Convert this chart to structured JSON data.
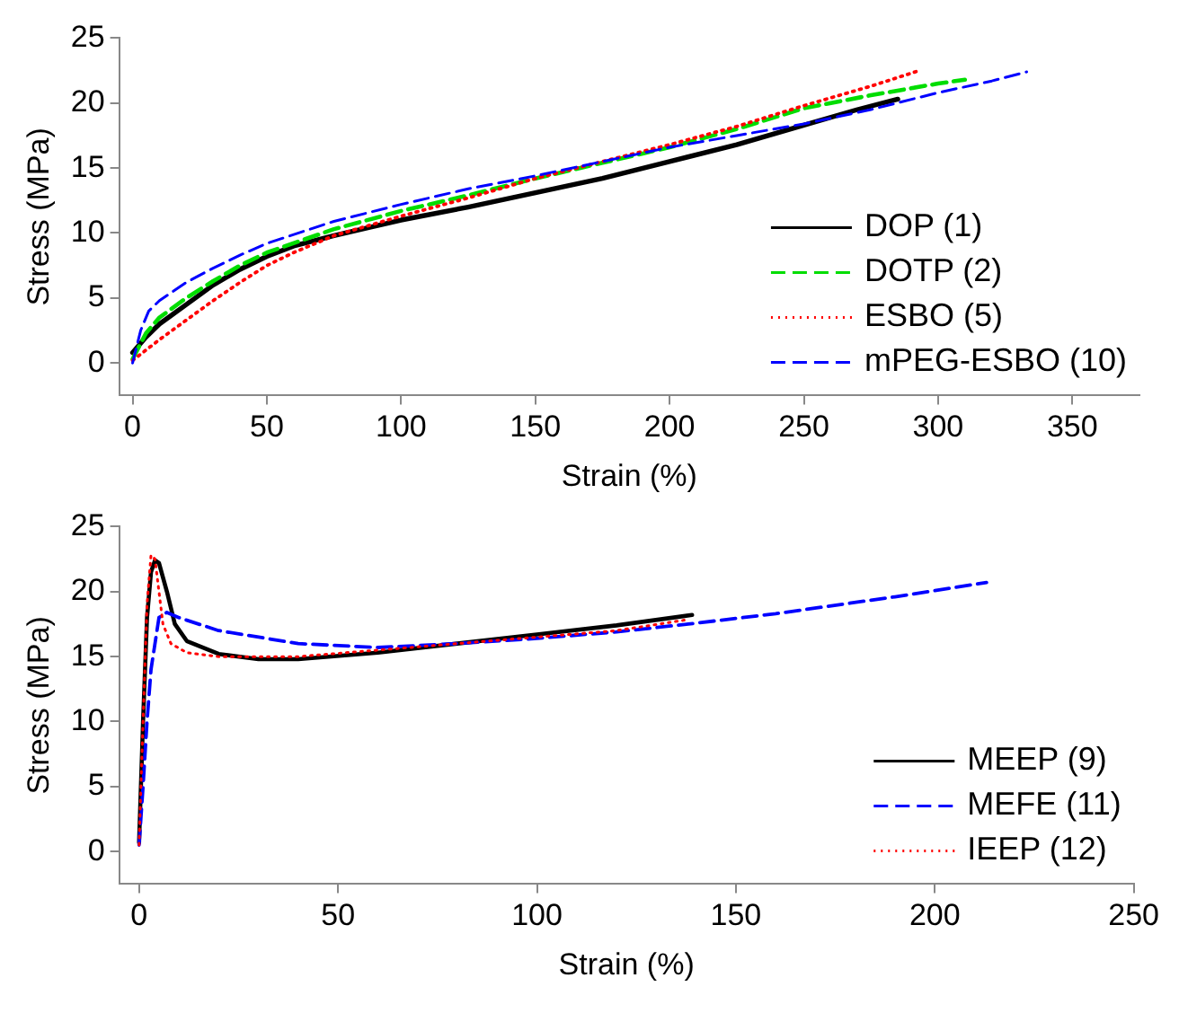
{
  "chart_data": [
    {
      "type": "line",
      "xlabel": "Strain (%)",
      "ylabel": "Stress (MPa)",
      "xlim": [
        -5,
        375
      ],
      "ylim": [
        -2.5,
        25
      ],
      "xticks": [
        0,
        50,
        100,
        150,
        200,
        250,
        300,
        350
      ],
      "yticks": [
        0,
        5,
        10,
        15,
        20,
        25
      ],
      "grid": false,
      "legend": "bottom right",
      "marker": "none",
      "series": [
        {
          "name": "DOP (1)",
          "color": "#000000",
          "line_style": "solid",
          "x": [
            0,
            5,
            10,
            20,
            30,
            40,
            50,
            60,
            75,
            100,
            125,
            150,
            175,
            200,
            225,
            250,
            270,
            285
          ],
          "values": [
            0.8,
            2,
            3,
            4.5,
            6,
            7.2,
            8.2,
            9,
            9.8,
            11,
            12,
            13.1,
            14.2,
            15.5,
            16.8,
            18.3,
            19.5,
            20.3
          ]
        },
        {
          "name": "DOTP (2)",
          "color": "#00dd00",
          "line_style": "dashed",
          "x": [
            0,
            5,
            10,
            20,
            30,
            40,
            50,
            75,
            100,
            125,
            150,
            175,
            200,
            225,
            250,
            275,
            300,
            310
          ],
          "values": [
            0.3,
            2.3,
            3.5,
            5,
            6.3,
            7.5,
            8.5,
            10.3,
            11.7,
            12.9,
            14.2,
            15.4,
            16.6,
            18,
            19.6,
            20.6,
            21.5,
            21.8
          ]
        },
        {
          "name": "ESBO (5)",
          "color": "#ff0000",
          "line_style": "dotted",
          "x": [
            0,
            5,
            10,
            20,
            30,
            40,
            50,
            60,
            75,
            100,
            125,
            150,
            175,
            200,
            225,
            250,
            275,
            293
          ],
          "values": [
            0.2,
            1,
            1.8,
            3.3,
            4.8,
            6.2,
            7.5,
            8.5,
            9.8,
            11.3,
            12.7,
            14.2,
            15.5,
            16.8,
            18.2,
            19.8,
            21.3,
            22.5
          ]
        },
        {
          "name": "mPEG-ESBO (10)",
          "color": "#0000ff",
          "line_style": "dashed",
          "x": [
            0,
            3,
            6,
            10,
            20,
            30,
            40,
            50,
            75,
            100,
            125,
            150,
            175,
            200,
            225,
            250,
            275,
            300,
            320,
            333
          ],
          "values": [
            0,
            2.5,
            4,
            4.8,
            6.2,
            7.3,
            8.3,
            9.2,
            10.9,
            12.2,
            13.4,
            14.4,
            15.5,
            16.6,
            17.5,
            18.4,
            19.5,
            20.8,
            21.7,
            22.4
          ]
        }
      ]
    },
    {
      "type": "line",
      "xlabel": "Strain (%)",
      "ylabel": "Stress (MPa)",
      "xlim": [
        -5,
        250
      ],
      "ylim": [
        -2.5,
        25
      ],
      "xticks": [
        0,
        50,
        100,
        150,
        200,
        250
      ],
      "yticks": [
        0,
        5,
        10,
        15,
        20,
        25
      ],
      "grid": false,
      "legend": "bottom right",
      "marker": "none",
      "series": [
        {
          "name": "MEEP (9)",
          "color": "#000000",
          "line_style": "solid",
          "x": [
            0,
            1,
            2,
            3,
            4,
            5,
            7,
            9,
            12,
            20,
            30,
            40,
            60,
            80,
            100,
            120,
            139
          ],
          "values": [
            0.7,
            10,
            18,
            21.5,
            22.4,
            22.2,
            20,
            17.5,
            16.2,
            15.2,
            14.8,
            14.8,
            15.3,
            16,
            16.7,
            17.4,
            18.2
          ]
        },
        {
          "name": "MEFE (11)",
          "color": "#0000ff",
          "line_style": "dashed",
          "x": [
            0,
            1,
            2,
            3,
            5,
            7,
            10,
            20,
            40,
            60,
            80,
            100,
            120,
            138,
            160,
            190,
            213
          ],
          "values": [
            0.5,
            5,
            10,
            14,
            18,
            18.4,
            18,
            17,
            16,
            15.7,
            16,
            16.4,
            16.9,
            17.5,
            18.3,
            19.6,
            20.7
          ]
        },
        {
          "name": "IEEP (12)",
          "color": "#ff0000",
          "line_style": "dotted",
          "x": [
            0,
            1,
            2,
            3,
            4,
            5,
            6,
            8,
            12,
            20,
            40,
            60,
            80,
            100,
            120,
            137
          ],
          "values": [
            0.5,
            10,
            19,
            22.8,
            22.5,
            20,
            17.5,
            16,
            15.3,
            15,
            15,
            15.5,
            16,
            16.5,
            17,
            17.8
          ]
        }
      ]
    }
  ]
}
